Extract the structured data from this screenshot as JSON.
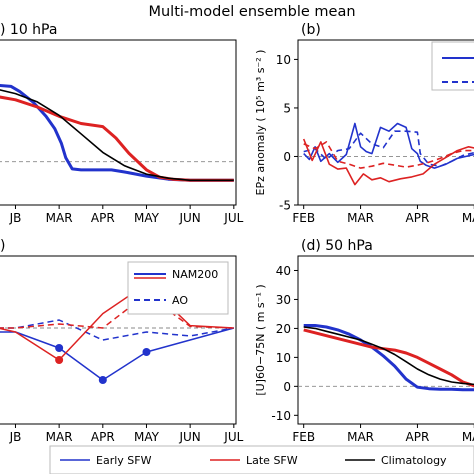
{
  "title": "Multi-model ensemble mean",
  "chart_data": [
    {
      "panel": "a",
      "type": "line",
      "label": ") 10 hPa",
      "xticks": [
        "JB",
        "MAR",
        "APR",
        "MAY",
        "JUN",
        "JUL"
      ],
      "xlim": [
        0.6,
        6.05
      ],
      "ylim": [
        0,
        16
      ],
      "zero_line": 4.2,
      "series": [
        {
          "key": "early",
          "color": "#2233cc",
          "x": [
            0.6,
            0.9,
            1.1,
            1.4,
            1.7,
            1.9,
            2.05,
            2.15,
            2.3,
            2.5,
            2.7,
            3.0,
            3.2,
            3.5,
            4.0,
            4.5,
            5.0,
            5.5,
            6.0
          ],
          "y": [
            11.6,
            11.5,
            11.0,
            10.0,
            8.6,
            7.4,
            6.0,
            4.6,
            3.5,
            3.4,
            3.4,
            3.4,
            3.4,
            3.2,
            2.8,
            2.5,
            2.4,
            2.4,
            2.4
          ]
        },
        {
          "key": "late",
          "color": "#dd2222",
          "x": [
            0.6,
            1.0,
            1.5,
            2.0,
            2.5,
            3.0,
            3.3,
            3.6,
            4.0,
            4.3,
            4.6,
            5.0,
            5.5,
            6.0
          ],
          "y": [
            10.5,
            10.2,
            9.5,
            8.6,
            7.9,
            7.6,
            6.5,
            5.0,
            3.4,
            2.7,
            2.5,
            2.4,
            2.4,
            2.4
          ]
        },
        {
          "key": "clim",
          "color": "#000000",
          "x": [
            0.6,
            1.0,
            1.5,
            2.0,
            2.5,
            3.0,
            3.5,
            4.0,
            4.5,
            5.0,
            5.5,
            6.0
          ],
          "y": [
            11.2,
            10.8,
            10.0,
            8.7,
            6.9,
            5.1,
            3.8,
            3.0,
            2.6,
            2.4,
            2.4,
            2.4
          ]
        }
      ]
    },
    {
      "panel": "b",
      "type": "line",
      "label": "(b)",
      "ylabel": "EPz anomaly ( 10⁵ m³ s⁻² )",
      "xticks": [
        "FEB",
        "MAR",
        "APR",
        "MAY"
      ],
      "xlim": [
        0.9,
        4.1
      ],
      "ylim": [
        -5,
        12
      ],
      "yticks": [
        -5,
        0,
        5,
        10
      ],
      "zero_line": 0,
      "series": [
        {
          "key": "early_nam",
          "color": "#2233cc",
          "dash": false,
          "x": [
            1.0,
            1.1,
            1.2,
            1.3,
            1.45,
            1.6,
            1.75,
            1.9,
            2.0,
            2.1,
            2.2,
            2.35,
            2.5,
            2.65,
            2.8,
            2.9,
            3.0,
            3.05,
            3.15,
            3.3,
            3.5,
            3.7,
            4.0
          ],
          "y": [
            0.3,
            -0.3,
            1.0,
            -0.5,
            0.3,
            -0.6,
            0.2,
            3.4,
            1.0,
            0.5,
            0.3,
            3.0,
            2.6,
            3.4,
            3.0,
            0.8,
            0.3,
            -0.5,
            -0.9,
            -1.2,
            -0.8,
            -0.2,
            0.2
          ]
        },
        {
          "key": "early_ao",
          "color": "#2233cc",
          "dash": true,
          "x": [
            1.0,
            1.2,
            1.4,
            1.6,
            1.8,
            2.0,
            2.2,
            2.4,
            2.6,
            2.8,
            3.0,
            3.05,
            3.2,
            3.4,
            3.6,
            3.8,
            4.0
          ],
          "y": [
            0.5,
            0.8,
            -0.3,
            0.6,
            0.8,
            2.4,
            1.3,
            0.9,
            2.6,
            2.6,
            2.5,
            0.3,
            -0.8,
            -1.0,
            -0.5,
            0.1,
            0.4
          ]
        },
        {
          "key": "late_nam",
          "color": "#dd2222",
          "dash": false,
          "x": [
            1.0,
            1.15,
            1.3,
            1.45,
            1.6,
            1.75,
            1.9,
            2.05,
            2.2,
            2.35,
            2.5,
            2.7,
            2.9,
            3.1,
            3.3,
            3.5,
            3.7,
            3.9,
            4.05
          ],
          "y": [
            1.8,
            -0.4,
            1.5,
            -0.8,
            -1.3,
            -1.2,
            -2.9,
            -1.8,
            -2.4,
            -2.2,
            -2.6,
            -2.3,
            -2.1,
            -1.8,
            -0.8,
            -0.1,
            0.6,
            1.0,
            0.8
          ]
        },
        {
          "key": "late_ao",
          "color": "#dd2222",
          "dash": true,
          "x": [
            1.0,
            1.2,
            1.4,
            1.6,
            1.8,
            2.0,
            2.2,
            2.4,
            2.6,
            2.8,
            3.0,
            3.2,
            3.4,
            3.6,
            3.8,
            4.05
          ],
          "y": [
            1.3,
            0.8,
            1.5,
            -0.5,
            -0.8,
            -1.2,
            -1.0,
            -0.7,
            -0.9,
            -1.1,
            -0.9,
            -0.6,
            -0.2,
            0.3,
            0.6,
            0.6
          ]
        }
      ],
      "legend": {
        "items": [
          {
            "dash": false
          },
          {
            "dash": true
          }
        ]
      }
    },
    {
      "panel": "c",
      "type": "line",
      "label": ")",
      "xticks": [
        "JB",
        "MAR",
        "APR",
        "MAY",
        "JUN",
        "JUL"
      ],
      "xlim": [
        0.6,
        6.05
      ],
      "ylim": [
        -12,
        9
      ],
      "zero_line": 0,
      "legend": {
        "items": [
          {
            "label": "NAM200",
            "dash": false
          },
          {
            "label": "AO",
            "dash": true
          }
        ]
      },
      "series": [
        {
          "key": "early_nam",
          "color": "#2233cc",
          "dash": false,
          "x": [
            0.6,
            1.0,
            2.0,
            3.0,
            4.0,
            5.0,
            6.0
          ],
          "y": [
            -0.5,
            -0.5,
            -2.5,
            -6.5,
            -3.0,
            -1.5,
            0.0
          ],
          "markers": [
            [
              2.0,
              -2.5
            ],
            [
              3.0,
              -6.5
            ],
            [
              4.0,
              -3.0
            ]
          ]
        },
        {
          "key": "early_ao",
          "color": "#2233cc",
          "dash": true,
          "x": [
            0.6,
            1.0,
            2.0,
            3.0,
            4.0,
            5.0,
            6.0
          ],
          "y": [
            0.0,
            0.0,
            1.0,
            -1.5,
            -0.5,
            -1.0,
            0.0
          ]
        },
        {
          "key": "late_nam",
          "color": "#dd2222",
          "dash": false,
          "x": [
            0.6,
            1.0,
            2.0,
            3.0,
            4.0,
            5.0,
            6.0
          ],
          "y": [
            0.0,
            -0.5,
            -4.0,
            1.8,
            5.5,
            0.3,
            0.0
          ],
          "markers": [
            [
              2.0,
              -4.0
            ],
            [
              4.0,
              5.5
            ]
          ]
        },
        {
          "key": "late_ao",
          "color": "#dd2222",
          "dash": true,
          "x": [
            0.6,
            1.0,
            2.0,
            3.0,
            4.0,
            5.0,
            6.0
          ],
          "y": [
            0.0,
            0.0,
            0.5,
            0.0,
            4.2,
            0.2,
            0.0
          ],
          "markers": [
            [
              4.0,
              4.2
            ]
          ]
        }
      ]
    },
    {
      "panel": "d",
      "type": "line",
      "label": "(d) 50 hPa",
      "ylabel": "[U]60−75N ( m s⁻¹ )",
      "xticks": [
        "FEB",
        "MAR",
        "APR",
        "MAY"
      ],
      "xlim": [
        0.9,
        4.1
      ],
      "ylim": [
        -13,
        45
      ],
      "yticks": [
        -10,
        0,
        10,
        20,
        30,
        40
      ],
      "zero_line": 0,
      "series": [
        {
          "key": "early",
          "color": "#2233cc",
          "x": [
            1.0,
            1.2,
            1.4,
            1.6,
            1.8,
            2.0,
            2.2,
            2.4,
            2.6,
            2.8,
            3.0,
            3.2,
            3.4,
            3.6,
            3.8,
            4.1
          ],
          "y": [
            21.0,
            21.0,
            20.5,
            19.5,
            18.0,
            16.0,
            13.5,
            10.5,
            7.0,
            2.5,
            -0.3,
            -0.8,
            -1.0,
            -1.0,
            -1.2,
            -1.2
          ]
        },
        {
          "key": "late",
          "color": "#dd2222",
          "x": [
            1.0,
            1.2,
            1.4,
            1.6,
            1.8,
            2.0,
            2.2,
            2.4,
            2.6,
            2.8,
            3.0,
            3.2,
            3.4,
            3.6,
            3.8,
            4.1
          ],
          "y": [
            19.5,
            18.5,
            17.5,
            16.5,
            15.5,
            14.5,
            13.5,
            13.0,
            12.5,
            11.5,
            10.0,
            8.0,
            6.0,
            4.0,
            1.5,
            -0.5
          ]
        },
        {
          "key": "clim",
          "color": "#000000",
          "x": [
            1.0,
            1.2,
            1.4,
            1.6,
            1.8,
            2.0,
            2.2,
            2.4,
            2.6,
            2.8,
            3.0,
            3.2,
            3.4,
            3.6,
            3.8,
            4.1
          ],
          "y": [
            20.5,
            20.0,
            19.0,
            18.0,
            17.0,
            16.0,
            14.5,
            13.0,
            11.0,
            8.5,
            6.0,
            4.0,
            2.5,
            1.5,
            1.0,
            0.5
          ]
        }
      ]
    }
  ],
  "legend": {
    "items": [
      {
        "label": "Early SFW",
        "color": "#2233cc"
      },
      {
        "label": "Late SFW",
        "color": "#dd2222"
      },
      {
        "label": "Climatology",
        "color": "#000000"
      }
    ]
  }
}
